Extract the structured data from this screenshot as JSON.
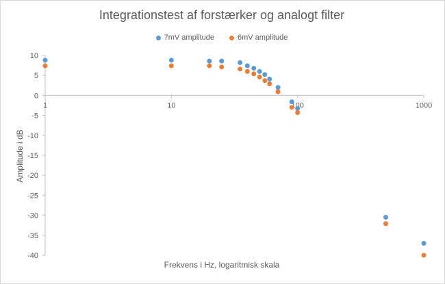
{
  "chart_data": {
    "type": "scatter",
    "title": "Integrationstest af forstærker og analogt filter",
    "xlabel": "Frekvens i Hz, logaritmisk skala",
    "ylabel": "Amplitude i dB",
    "xscale": "log",
    "xlim": [
      1,
      1000
    ],
    "ylim": [
      -40,
      10
    ],
    "xticks": [
      "1",
      "10",
      "100",
      "1000"
    ],
    "yticks": [
      "10",
      "5",
      "0",
      "-5",
      "-10",
      "-15",
      "-20",
      "-25",
      "-30",
      "-35",
      "-40"
    ],
    "grid": false,
    "legend": "top-center",
    "series": [
      {
        "name": "7mV amplitude",
        "color": "#5b9bd5",
        "x": [
          1,
          10,
          20,
          25,
          35,
          40,
          45,
          50,
          55,
          60,
          70,
          90,
          100,
          500,
          1000
        ],
        "y": [
          8.8,
          8.8,
          8.6,
          8.6,
          8.2,
          7.4,
          6.8,
          6.0,
          5.2,
          4.1,
          2.0,
          -1.6,
          -3.3,
          -30.5,
          -37.0
        ]
      },
      {
        "name": "6mV amplitude",
        "color": "#ed7d31",
        "x": [
          1,
          10,
          20,
          25,
          35,
          40,
          45,
          50,
          55,
          60,
          70,
          90,
          100,
          500,
          1000
        ],
        "y": [
          7.4,
          7.4,
          7.4,
          7.1,
          6.6,
          6.0,
          5.4,
          4.6,
          3.7,
          2.9,
          0.9,
          -3.0,
          -4.3,
          -32.1,
          -40.0
        ]
      }
    ]
  }
}
